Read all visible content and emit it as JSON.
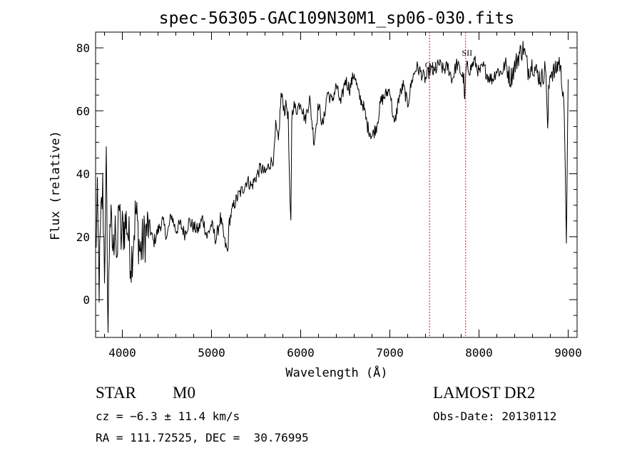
{
  "chart_data": {
    "type": "line",
    "title": "spec-56305-GAC109N30M1_sp06-030.fits",
    "xlabel": "Wavelength (Å)",
    "ylabel": "Flux (relative)",
    "xlim": [
      3700,
      9100
    ],
    "ylim": [
      -12,
      85
    ],
    "xticks": [
      4000,
      5000,
      6000,
      7000,
      8000,
      9000
    ],
    "yticks": [
      0,
      20,
      40,
      60,
      80
    ],
    "grid": false,
    "series": [
      {
        "x": [
          3700,
          3720,
          3740,
          3760,
          3780,
          3800,
          3820,
          3840,
          3860,
          3880,
          3900,
          3920,
          3940,
          3960,
          3980,
          4000,
          4050,
          4100,
          4150,
          4200,
          4250,
          4300,
          4350,
          4400,
          4450,
          4500,
          4550,
          4600,
          4650,
          4700,
          4750,
          4800,
          4850,
          4900,
          4950,
          5000,
          5050,
          5100,
          5150,
          5180,
          5200,
          5250,
          5300,
          5350,
          5400,
          5450,
          5500,
          5550,
          5600,
          5650,
          5700,
          5720,
          5750,
          5780,
          5800,
          5820,
          5840,
          5860,
          5880,
          5890,
          5900,
          5920,
          5950,
          6000,
          6050,
          6100,
          6150,
          6200,
          6250,
          6300,
          6350,
          6400,
          6450,
          6500,
          6550,
          6600,
          6650,
          6700,
          6750,
          6800,
          6850,
          6900,
          6950,
          7000,
          7050,
          7100,
          7150,
          7200,
          7250,
          7300,
          7350,
          7400,
          7450,
          7500,
          7550,
          7600,
          7650,
          7700,
          7750,
          7800,
          7830,
          7840,
          7850,
          7860,
          7900,
          7950,
          8000,
          8050,
          8100,
          8150,
          8200,
          8250,
          8300,
          8350,
          8400,
          8450,
          8500,
          8550,
          8600,
          8650,
          8700,
          8750,
          8770,
          8780,
          8800,
          8850,
          8900,
          8950,
          8980,
          9000
        ],
        "y": [
          15,
          30,
          5,
          25,
          35,
          10,
          42,
          -10,
          28,
          20,
          15,
          30,
          5,
          35,
          18,
          22,
          25,
          12,
          28,
          15,
          20,
          24,
          18,
          22,
          25,
          20,
          27,
          22,
          24,
          21,
          25,
          23,
          22,
          26,
          20,
          24,
          19,
          26,
          18,
          15,
          25,
          30,
          33,
          35,
          38,
          36,
          39,
          42,
          40,
          43,
          45,
          55,
          50,
          65,
          63,
          60,
          62,
          58,
          30,
          24,
          58,
          62,
          60,
          63,
          57,
          64,
          50,
          62,
          55,
          66,
          63,
          68,
          62,
          70,
          67,
          72,
          65,
          62,
          55,
          52,
          55,
          63,
          65,
          67,
          55,
          64,
          68,
          62,
          70,
          74,
          72,
          70,
          73,
          72,
          75,
          73,
          74,
          70,
          75,
          72,
          70,
          62,
          71,
          74,
          73,
          76,
          72,
          74,
          71,
          70,
          73,
          72,
          75,
          70,
          74,
          78,
          80,
          73,
          75,
          72,
          70,
          74,
          52,
          65,
          73,
          72,
          76,
          65,
          20,
          70
        ]
      }
    ],
    "line_markers": [
      {
        "label": "OII",
        "x": 7445
      },
      {
        "label": "SII",
        "x": 7850
      }
    ]
  },
  "info": {
    "class_label": "STAR",
    "subclass_label": "M0",
    "cz_text": "cz = −6.3 ± 11.4 km/s",
    "coords_text": "RA = 111.72525, DEC =  30.76995",
    "survey_text": "LAMOST DR2",
    "obsdate_text": "Obs-Date: 20130112"
  },
  "colors": {
    "spectrum": "#000000",
    "marker_line": "#b22222",
    "axes": "#000000",
    "background": "#ffffff"
  }
}
